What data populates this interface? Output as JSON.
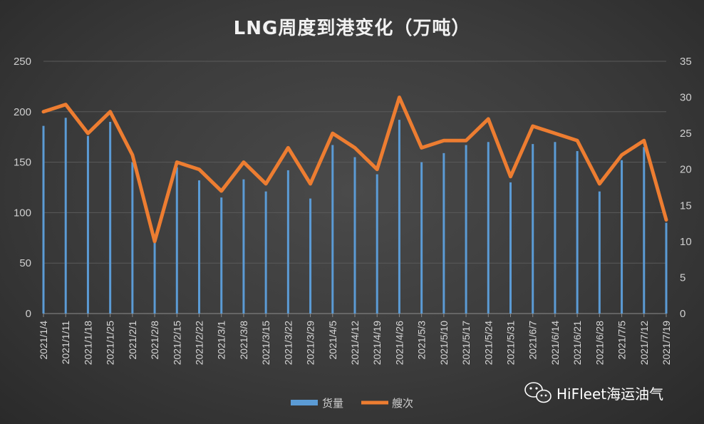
{
  "chart_data": {
    "type": "bar+line",
    "title": "LNG周度到港变化（万吨）",
    "categories": [
      "2021/1/4",
      "2021/1/11",
      "2021/1/18",
      "2021/1/25",
      "2021/2/1",
      "2021/2/8",
      "2021/2/15",
      "2021/2/22",
      "2021/3/1",
      "2021/3/8",
      "2021/3/15",
      "2021/3/22",
      "2021/3/29",
      "2021/4/5",
      "2021/4/12",
      "2021/4/19",
      "2021/4/26",
      "2021/5/3",
      "2021/5/10",
      "2021/5/17",
      "2021/5/24",
      "2021/5/31",
      "2021/6/7",
      "2021/6/14",
      "2021/6/21",
      "2021/6/28",
      "2021/7/5",
      "2021/7/12",
      "2021/7/19"
    ],
    "series": [
      {
        "name": "货量",
        "type": "bar",
        "axis": "left",
        "color": "#5b9bd5",
        "values": [
          186,
          194,
          176,
          190,
          150,
          70,
          145,
          132,
          115,
          133,
          121,
          142,
          114,
          167,
          155,
          138,
          192,
          150,
          159,
          167,
          170,
          130,
          168,
          170,
          161,
          121,
          152,
          165,
          90
        ]
      },
      {
        "name": "艘次",
        "type": "line",
        "axis": "right",
        "color": "#ed7d31",
        "values": [
          28,
          29,
          25,
          28,
          22,
          10,
          21,
          20,
          17,
          21,
          18,
          23,
          18,
          25,
          23,
          20,
          30,
          23,
          24,
          24,
          27,
          19,
          26,
          25,
          24,
          18,
          22,
          24,
          13
        ]
      }
    ],
    "y_left": {
      "ylim": [
        0,
        250
      ],
      "ticks": [
        0,
        50,
        100,
        150,
        200,
        250
      ]
    },
    "y_right": {
      "ylim": [
        0,
        35
      ],
      "ticks": [
        0,
        5,
        10,
        15,
        20,
        25,
        30,
        35
      ]
    },
    "grid": true,
    "legend_position": "bottom"
  },
  "watermark": {
    "text": "HiFleet海运油气",
    "icon": "wechat-icon"
  }
}
